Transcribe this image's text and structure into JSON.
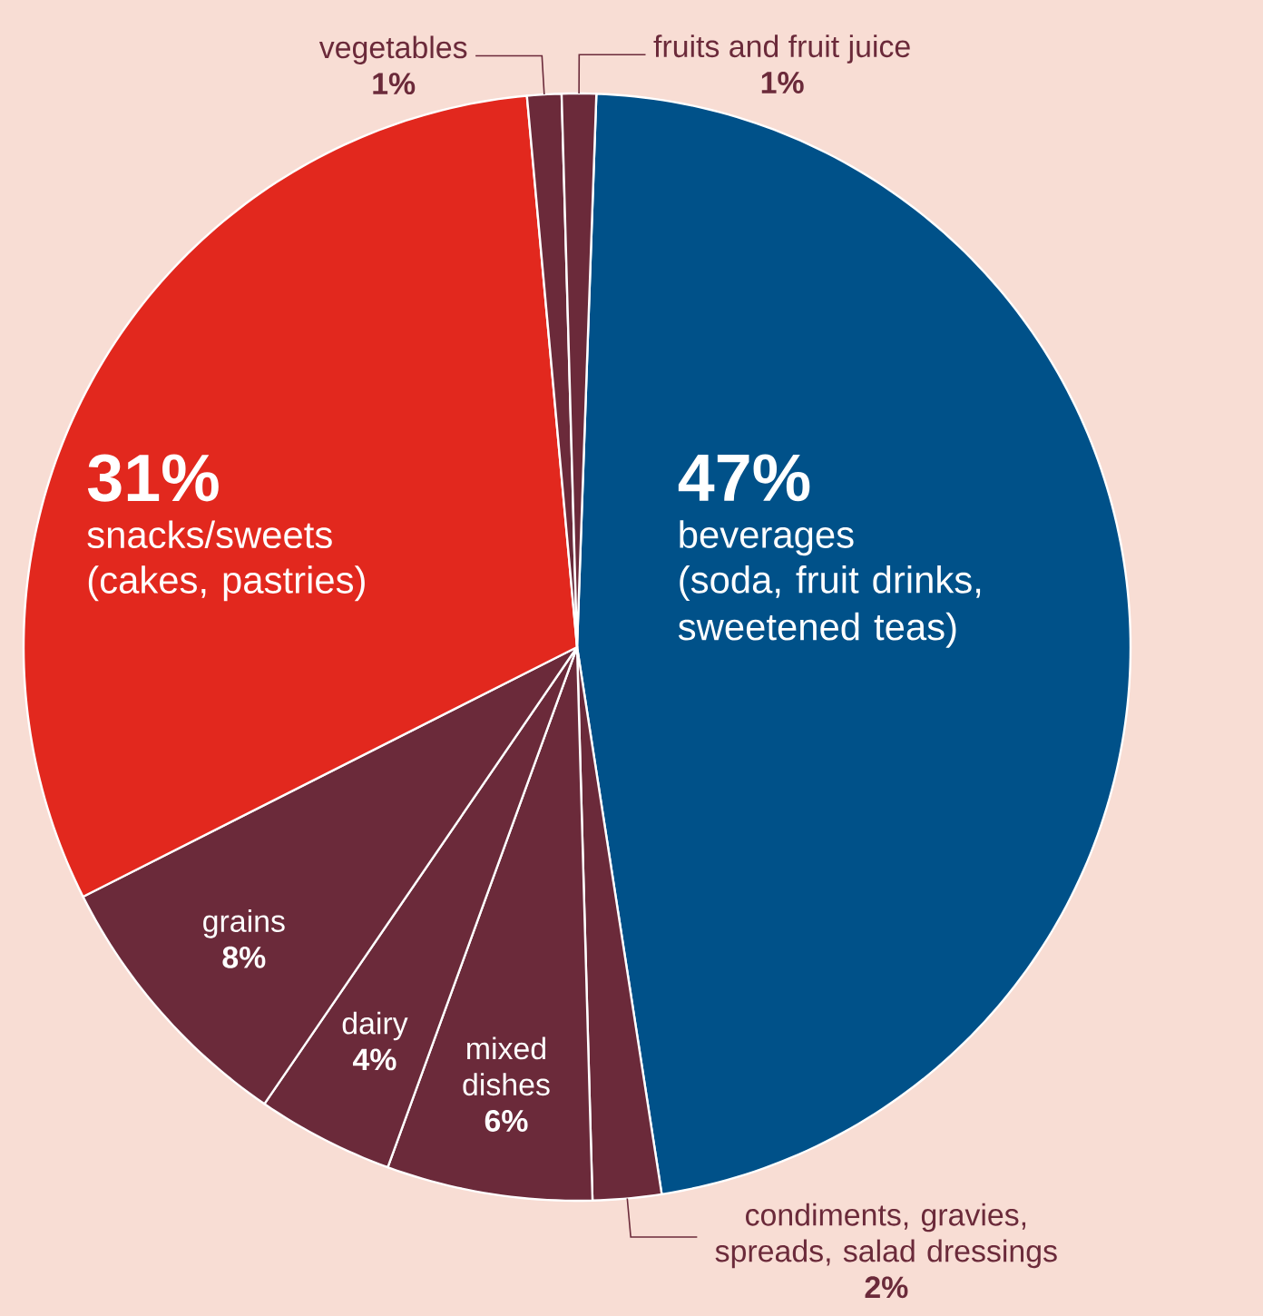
{
  "chart_data": {
    "type": "pie",
    "categories": [
      "beverages",
      "condiments, gravies, spreads, salad dressings",
      "mixed dishes",
      "dairy",
      "grains",
      "snacks/sweets",
      "vegetables",
      "fruits and fruit juice"
    ],
    "values": [
      47,
      2,
      6,
      4,
      8,
      31,
      1,
      1
    ],
    "value_labels": [
      "47%",
      "2%",
      "6%",
      "4%",
      "8%",
      "31%",
      "1%",
      "1%"
    ],
    "colors": [
      "#005189",
      "#6b2a3a",
      "#6b2a3a",
      "#6b2a3a",
      "#6b2a3a",
      "#e2281e",
      "#6b2a3a",
      "#6b2a3a"
    ],
    "annotations": [
      "(soda, fruit drinks, sweetened teas)",
      "(cakes, pastries)"
    ]
  }
}
